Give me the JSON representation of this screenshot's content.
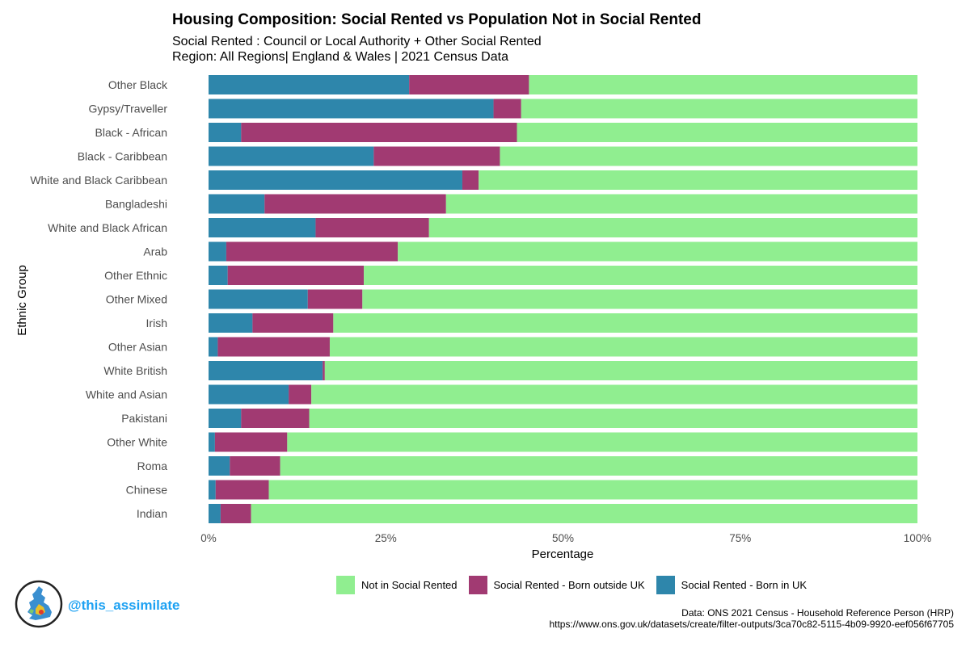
{
  "title": "Housing Composition: Social Rented vs Population Not in Social Rented",
  "subtitle_line1": "Social Rented : Council or Local Authority + Other Social Rented",
  "subtitle_line2": "Region: All Regions| England & Wales | 2021 Census Data",
  "handle": "@this_assimilate",
  "caption_line1": "Data: ONS 2021 Census - Household Reference Person (HRP)",
  "caption_line2": "https://www.ons.gov.uk/datasets/create/filter-outputs/3ca70c82-5115-4b09-9920-eef056f67705",
  "legend": [
    {
      "label": "Not in Social Rented",
      "color": "#90ee90"
    },
    {
      "label": "Social Rented - Born outside UK",
      "color": "#a13a72"
    },
    {
      "label": "Social Rented - Born in UK",
      "color": "#2e86ab"
    }
  ],
  "chart_data": {
    "type": "bar",
    "orientation": "horizontal",
    "stacked": true,
    "title": "Housing Composition: Social Rented vs Population Not in Social Rented",
    "xlabel": "Percentage",
    "ylabel": "Ethnic Group",
    "xlim": [
      0,
      100
    ],
    "xticks": [
      "0%",
      "25%",
      "50%",
      "75%",
      "100%"
    ],
    "categories": [
      "Other Black",
      "Gypsy/Traveller",
      "Black - African",
      "Black - Caribbean",
      "White and Black Caribbean",
      "Bangladeshi",
      "White and Black African",
      "Arab",
      "Other Ethnic",
      "Other Mixed",
      "Irish",
      "Other Asian",
      "White British",
      "White and Asian",
      "Pakistani",
      "Other White",
      "Roma",
      "Chinese",
      "Indian"
    ],
    "series": [
      {
        "name": "Social Rented - Born in UK",
        "color": "#2e86ab",
        "values": [
          28.3,
          40.2,
          4.6,
          23.3,
          35.8,
          7.9,
          15.1,
          2.5,
          2.7,
          14.0,
          6.2,
          1.3,
          16.1,
          11.3,
          4.6,
          0.9,
          3.0,
          1.0,
          1.7
        ]
      },
      {
        "name": "Social Rented - Born outside UK",
        "color": "#a13a72",
        "values": [
          16.9,
          3.9,
          38.9,
          17.8,
          2.3,
          25.6,
          16.0,
          24.2,
          19.2,
          7.7,
          11.4,
          15.8,
          0.3,
          3.2,
          9.6,
          10.2,
          7.1,
          7.5,
          4.3
        ]
      },
      {
        "name": "Not in Social Rented",
        "color": "#90ee90",
        "values": [
          54.8,
          55.9,
          56.5,
          58.9,
          61.9,
          66.5,
          68.9,
          73.3,
          78.1,
          78.3,
          82.4,
          82.9,
          83.6,
          85.5,
          85.8,
          88.9,
          89.9,
          91.5,
          94.0
        ]
      }
    ]
  }
}
